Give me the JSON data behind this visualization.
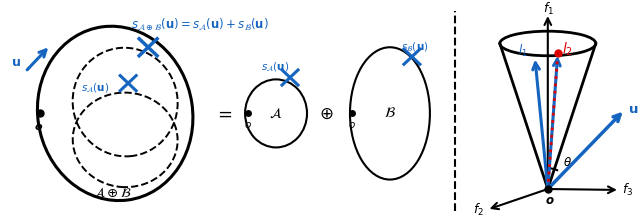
{
  "blue_color": "#1565C0",
  "red_color": "#DD0000",
  "black": "#000000",
  "bg_color": "#FFFFFF",
  "fig_width": 6.4,
  "fig_height": 2.19,
  "dpi": 100
}
